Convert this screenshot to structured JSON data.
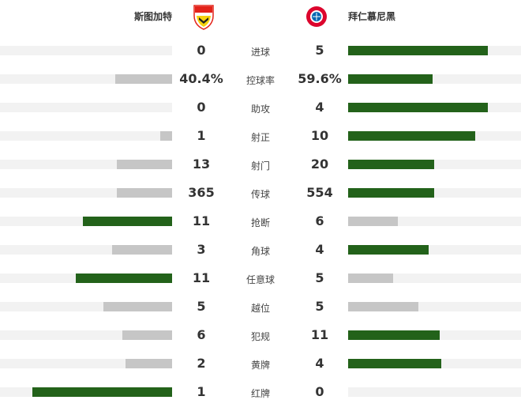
{
  "home": {
    "name": "斯图加特",
    "logo": "vfb-stuttgart-crest"
  },
  "away": {
    "name": "拜仁慕尼黑",
    "logo": "fc-bayern-crest"
  },
  "colors": {
    "leader": "#23621a",
    "trailer": "#c6c6c6",
    "track": "#f2f2f2"
  },
  "stats": [
    {
      "label": "进球",
      "home": "0",
      "away": "5",
      "home_fill": 0,
      "away_fill": 0.81
    },
    {
      "label": "控球率",
      "home": "40.4%",
      "away": "59.6%",
      "home_fill": 0.33,
      "away_fill": 0.49
    },
    {
      "label": "助攻",
      "home": "0",
      "away": "4",
      "home_fill": 0,
      "away_fill": 0.81
    },
    {
      "label": "射正",
      "home": "1",
      "away": "10",
      "home_fill": 0.07,
      "away_fill": 0.74
    },
    {
      "label": "射门",
      "home": "13",
      "away": "20",
      "home_fill": 0.32,
      "away_fill": 0.5
    },
    {
      "label": "传球",
      "home": "365",
      "away": "554",
      "home_fill": 0.32,
      "away_fill": 0.5
    },
    {
      "label": "抢断",
      "home": "11",
      "away": "6",
      "home_fill": 0.52,
      "away_fill": 0.29
    },
    {
      "label": "角球",
      "home": "3",
      "away": "4",
      "home_fill": 0.35,
      "away_fill": 0.47
    },
    {
      "label": "任意球",
      "home": "11",
      "away": "5",
      "home_fill": 0.56,
      "away_fill": 0.26
    },
    {
      "label": "越位",
      "home": "5",
      "away": "5",
      "home_fill": 0.4,
      "away_fill": 0.41
    },
    {
      "label": "犯规",
      "home": "6",
      "away": "11",
      "home_fill": 0.29,
      "away_fill": 0.53
    },
    {
      "label": "黄牌",
      "home": "2",
      "away": "4",
      "home_fill": 0.27,
      "away_fill": 0.54
    },
    {
      "label": "红牌",
      "home": "1",
      "away": "0",
      "home_fill": 0.81,
      "away_fill": 0
    }
  ]
}
